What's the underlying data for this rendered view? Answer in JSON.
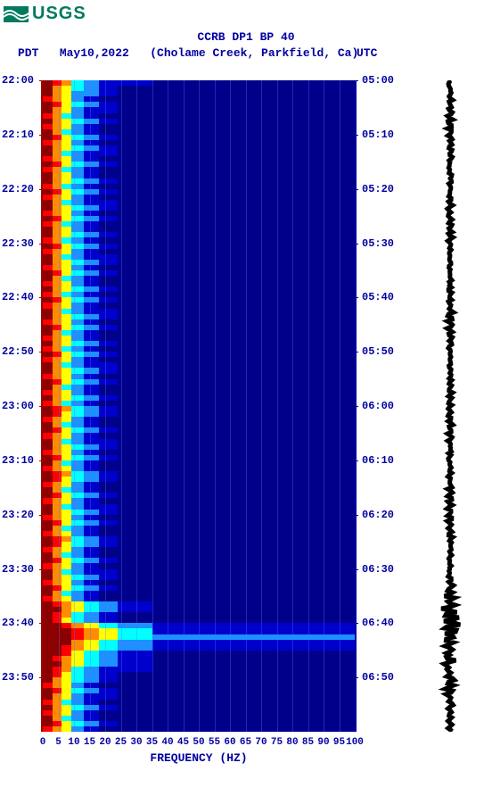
{
  "logo_text": "USGS",
  "title_line1": "CCRB DP1 BP 40",
  "title_date": "May10,2022",
  "title_location": "(Cholame Creek, Parkfield, Ca)",
  "tz_left": "PDT",
  "tz_right": "UTC",
  "x_label": "FREQUENCY (HZ)",
  "spectrogram": {
    "type": "spectrogram",
    "x_min": 0,
    "x_max": 100,
    "xticks": [
      0,
      5,
      10,
      15,
      20,
      25,
      30,
      35,
      40,
      45,
      50,
      55,
      60,
      65,
      70,
      75,
      80,
      85,
      90,
      95,
      100
    ],
    "time_start_left": "22:00",
    "time_end_left": "24:00",
    "time_start_right": "05:00",
    "time_end_right": "07:00",
    "left_ticks": [
      "22:00",
      "22:10",
      "22:20",
      "22:30",
      "22:40",
      "22:50",
      "23:00",
      "23:10",
      "23:20",
      "23:30",
      "23:40",
      "23:50"
    ],
    "right_ticks": [
      "05:00",
      "05:10",
      "05:20",
      "05:30",
      "05:40",
      "05:50",
      "06:00",
      "06:10",
      "06:20",
      "06:30",
      "06:40",
      "06:50"
    ],
    "tick_spacing_min": 10,
    "total_min": 120,
    "background_color": "#0000cd",
    "gridline_color": "rgba(80,120,255,0.35)",
    "colormap": [
      "#00008b",
      "#0000cd",
      "#1e90ff",
      "#00ffff",
      "#ffff00",
      "#ff8c00",
      "#ff0000",
      "#8b0000"
    ],
    "font_color": "#0000a0",
    "axis_left_color": "#a00000",
    "axis_right_color": "#0000a0",
    "title_fontsize": 13,
    "tick_fontsize": 12,
    "xtick_fontsize": 11,
    "data_rows": [
      [
        7,
        6,
        5,
        3,
        2,
        1,
        1,
        0
      ],
      [
        7,
        5,
        4,
        3,
        2,
        1,
        0,
        0
      ],
      [
        7,
        5,
        4,
        2,
        2,
        1,
        0,
        0
      ],
      [
        6,
        5,
        4,
        2,
        1,
        0,
        0,
        0
      ],
      [
        7,
        6,
        4,
        3,
        2,
        1,
        0,
        0
      ],
      [
        7,
        5,
        4,
        2,
        1,
        1,
        0,
        0
      ],
      [
        6,
        5,
        3,
        2,
        1,
        0,
        0,
        0
      ],
      [
        7,
        5,
        4,
        3,
        2,
        1,
        0,
        0
      ],
      [
        6,
        5,
        4,
        2,
        1,
        0,
        0,
        0
      ],
      [
        7,
        5,
        3,
        2,
        1,
        0,
        0,
        0
      ],
      [
        7,
        6,
        4,
        3,
        2,
        1,
        0,
        0
      ],
      [
        6,
        5,
        4,
        2,
        1,
        0,
        0,
        0
      ],
      [
        7,
        5,
        4,
        3,
        2,
        1,
        0,
        0
      ],
      [
        7,
        5,
        3,
        2,
        1,
        1,
        0,
        0
      ],
      [
        6,
        5,
        4,
        2,
        1,
        0,
        0,
        0
      ],
      [
        7,
        6,
        4,
        3,
        2,
        1,
        0,
        0
      ],
      [
        6,
        5,
        3,
        2,
        1,
        0,
        0,
        0
      ],
      [
        7,
        5,
        4,
        2,
        1,
        0,
        0,
        0
      ],
      [
        7,
        5,
        4,
        3,
        2,
        1,
        0,
        0
      ],
      [
        6,
        5,
        3,
        2,
        1,
        0,
        0,
        0
      ],
      [
        7,
        6,
        4,
        3,
        2,
        1,
        0,
        0
      ],
      [
        6,
        5,
        4,
        2,
        1,
        0,
        0,
        0
      ],
      [
        7,
        5,
        3,
        2,
        1,
        1,
        0,
        0
      ],
      [
        7,
        5,
        4,
        3,
        2,
        1,
        0,
        0
      ],
      [
        6,
        5,
        4,
        2,
        1,
        0,
        0,
        0
      ],
      [
        7,
        6,
        4,
        3,
        2,
        1,
        0,
        0
      ],
      [
        6,
        5,
        3,
        2,
        1,
        0,
        0,
        0
      ],
      [
        7,
        5,
        4,
        2,
        1,
        0,
        0,
        0
      ],
      [
        7,
        5,
        4,
        3,
        2,
        1,
        0,
        0
      ],
      [
        6,
        5,
        3,
        2,
        1,
        0,
        0,
        0
      ],
      [
        7,
        6,
        4,
        3,
        2,
        1,
        0,
        0
      ],
      [
        6,
        5,
        4,
        2,
        1,
        0,
        0,
        0
      ],
      [
        7,
        5,
        3,
        2,
        1,
        1,
        0,
        0
      ],
      [
        7,
        5,
        4,
        3,
        2,
        1,
        0,
        0
      ],
      [
        6,
        5,
        4,
        2,
        1,
        0,
        0,
        0
      ],
      [
        7,
        6,
        4,
        3,
        2,
        1,
        0,
        0
      ],
      [
        7,
        5,
        3,
        2,
        1,
        0,
        0,
        0
      ],
      [
        6,
        5,
        4,
        2,
        1,
        0,
        0,
        0
      ],
      [
        7,
        5,
        4,
        3,
        2,
        1,
        0,
        0
      ],
      [
        6,
        5,
        3,
        2,
        1,
        0,
        0,
        0
      ],
      [
        7,
        6,
        4,
        3,
        2,
        1,
        0,
        0
      ],
      [
        6,
        5,
        4,
        2,
        1,
        0,
        0,
        0
      ],
      [
        7,
        5,
        3,
        2,
        1,
        1,
        0,
        0
      ],
      [
        7,
        5,
        4,
        3,
        2,
        1,
        0,
        0
      ],
      [
        6,
        5,
        4,
        2,
        1,
        0,
        0,
        0
      ],
      [
        7,
        6,
        4,
        3,
        2,
        1,
        0,
        0
      ],
      [
        7,
        5,
        3,
        2,
        1,
        0,
        0,
        0
      ],
      [
        6,
        5,
        4,
        2,
        1,
        0,
        0,
        0
      ],
      [
        7,
        5,
        4,
        3,
        2,
        1,
        0,
        0
      ],
      [
        6,
        5,
        3,
        2,
        1,
        0,
        0,
        0
      ],
      [
        7,
        6,
        4,
        3,
        2,
        1,
        0,
        0
      ],
      [
        6,
        5,
        4,
        2,
        1,
        0,
        0,
        0
      ],
      [
        7,
        5,
        3,
        2,
        1,
        1,
        0,
        0
      ],
      [
        7,
        5,
        4,
        3,
        2,
        1,
        0,
        0
      ],
      [
        6,
        5,
        4,
        2,
        1,
        0,
        0,
        0
      ],
      [
        7,
        6,
        4,
        3,
        2,
        1,
        0,
        0
      ],
      [
        7,
        5,
        3,
        2,
        1,
        0,
        0,
        0
      ],
      [
        6,
        5,
        4,
        2,
        1,
        0,
        0,
        0
      ],
      [
        7,
        5,
        4,
        3,
        2,
        1,
        0,
        0
      ],
      [
        6,
        5,
        3,
        2,
        1,
        0,
        0,
        0
      ],
      [
        7,
        6,
        5,
        3,
        2,
        1,
        0,
        0
      ],
      [
        7,
        6,
        4,
        3,
        2,
        1,
        0,
        0
      ],
      [
        6,
        5,
        4,
        2,
        1,
        0,
        0,
        0
      ],
      [
        7,
        5,
        3,
        2,
        1,
        0,
        0,
        0
      ],
      [
        7,
        6,
        4,
        3,
        2,
        1,
        0,
        0
      ],
      [
        6,
        5,
        4,
        2,
        1,
        0,
        0,
        0
      ],
      [
        7,
        5,
        3,
        2,
        1,
        1,
        0,
        0
      ],
      [
        7,
        5,
        4,
        3,
        2,
        1,
        0,
        0
      ],
      [
        6,
        5,
        4,
        2,
        1,
        0,
        0,
        0
      ],
      [
        7,
        6,
        4,
        3,
        2,
        1,
        0,
        0
      ],
      [
        7,
        5,
        3,
        2,
        1,
        0,
        0,
        0
      ],
      [
        6,
        5,
        4,
        2,
        1,
        0,
        0,
        0
      ],
      [
        7,
        6,
        5,
        3,
        2,
        1,
        0,
        0
      ],
      [
        7,
        6,
        4,
        3,
        2,
        1,
        0,
        0
      ],
      [
        6,
        5,
        4,
        2,
        1,
        0,
        0,
        0
      ],
      [
        7,
        5,
        3,
        2,
        1,
        0,
        0,
        0
      ],
      [
        7,
        6,
        4,
        3,
        2,
        1,
        0,
        0
      ],
      [
        6,
        5,
        4,
        2,
        1,
        0,
        0,
        0
      ],
      [
        7,
        5,
        3,
        2,
        1,
        1,
        0,
        0
      ],
      [
        7,
        5,
        4,
        3,
        2,
        1,
        0,
        0
      ],
      [
        6,
        5,
        4,
        2,
        1,
        0,
        0,
        0
      ],
      [
        7,
        6,
        4,
        3,
        2,
        1,
        0,
        0
      ],
      [
        7,
        5,
        3,
        2,
        1,
        0,
        0,
        0
      ],
      [
        6,
        5,
        4,
        2,
        1,
        0,
        0,
        0
      ],
      [
        7,
        6,
        5,
        3,
        2,
        1,
        0,
        0
      ],
      [
        7,
        6,
        4,
        3,
        2,
        1,
        0,
        0
      ],
      [
        6,
        5,
        4,
        2,
        1,
        0,
        0,
        0
      ],
      [
        7,
        5,
        3,
        2,
        1,
        0,
        0,
        0
      ],
      [
        7,
        6,
        4,
        3,
        2,
        1,
        0,
        0
      ],
      [
        6,
        5,
        4,
        2,
        1,
        0,
        0,
        0
      ],
      [
        7,
        5,
        3,
        2,
        1,
        1,
        0,
        0
      ],
      [
        7,
        5,
        4,
        3,
        2,
        1,
        0,
        0
      ],
      [
        6,
        5,
        4,
        2,
        1,
        0,
        0,
        0
      ],
      [
        7,
        6,
        4,
        3,
        2,
        1,
        0,
        0
      ],
      [
        7,
        5,
        3,
        2,
        1,
        0,
        0,
        0
      ],
      [
        6,
        5,
        4,
        2,
        1,
        0,
        0,
        0
      ],
      [
        7,
        6,
        5,
        4,
        3,
        2,
        1,
        0
      ],
      [
        7,
        7,
        5,
        4,
        3,
        2,
        1,
        0
      ],
      [
        7,
        6,
        5,
        3,
        2,
        1,
        0,
        0
      ],
      [
        7,
        6,
        4,
        3,
        2,
        1,
        0,
        0
      ],
      [
        7,
        7,
        6,
        5,
        4,
        3,
        2,
        1
      ],
      [
        7,
        7,
        7,
        6,
        5,
        4,
        3,
        1
      ],
      [
        7,
        7,
        7,
        6,
        5,
        4,
        3,
        2
      ],
      [
        7,
        7,
        7,
        5,
        4,
        3,
        2,
        1
      ],
      [
        7,
        7,
        6,
        5,
        4,
        3,
        2,
        1
      ],
      [
        7,
        7,
        6,
        4,
        3,
        2,
        1,
        0
      ],
      [
        7,
        6,
        5,
        4,
        3,
        2,
        1,
        0
      ],
      [
        7,
        7,
        5,
        4,
        3,
        2,
        1,
        0
      ],
      [
        7,
        6,
        5,
        3,
        2,
        1,
        1,
        0
      ],
      [
        7,
        6,
        4,
        3,
        2,
        1,
        0,
        0
      ],
      [
        7,
        5,
        4,
        3,
        2,
        1,
        0,
        0
      ],
      [
        6,
        5,
        4,
        2,
        1,
        0,
        0,
        0
      ],
      [
        7,
        6,
        4,
        3,
        2,
        1,
        0,
        0
      ],
      [
        7,
        5,
        4,
        2,
        1,
        1,
        0,
        0
      ],
      [
        6,
        5,
        3,
        2,
        1,
        0,
        0,
        0
      ],
      [
        7,
        5,
        4,
        3,
        2,
        1,
        0,
        0
      ],
      [
        6,
        5,
        4,
        2,
        1,
        0,
        0,
        0
      ],
      [
        7,
        5,
        3,
        2,
        1,
        0,
        0,
        0
      ],
      [
        7,
        6,
        4,
        3,
        2,
        1,
        0,
        0
      ],
      [
        6,
        5,
        4,
        2,
        1,
        0,
        0,
        0
      ]
    ],
    "row_freq_edges": [
      0,
      3,
      6,
      9,
      13,
      18,
      24,
      35,
      100
    ],
    "n_rows": 120
  }
}
